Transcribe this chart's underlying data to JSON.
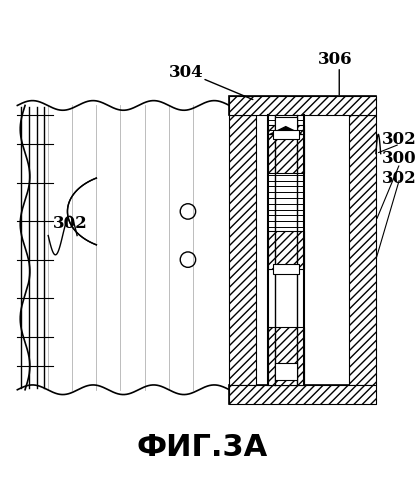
{
  "title": "ФИГ.3А",
  "title_fontsize": 22,
  "bg_color": "#ffffff",
  "line_color": "#000000",
  "label_304": "304",
  "label_306": "306",
  "label_302": "302",
  "label_300": "300",
  "label_302b": "302",
  "label_302c": "302"
}
